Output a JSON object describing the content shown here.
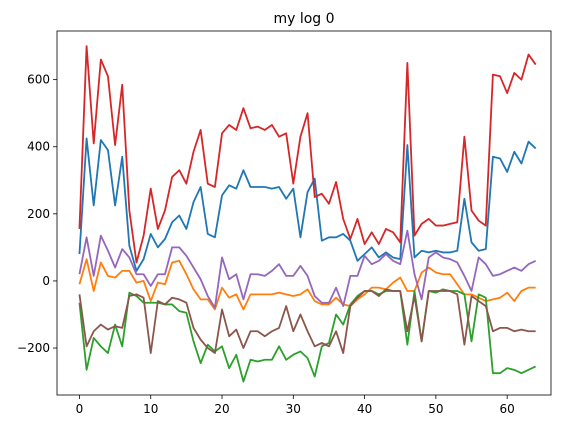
{
  "chart_data": {
    "type": "line",
    "title": "my log 0",
    "xlabel": "",
    "ylabel": "",
    "xlim": [
      -3.15,
      66.15
    ],
    "ylim": [
      -340,
      745
    ],
    "xticks": [
      0,
      10,
      20,
      30,
      40,
      50,
      60
    ],
    "yticks": [
      -200,
      0,
      200,
      400,
      600
    ],
    "grid": false,
    "legend": "none",
    "series": [
      {
        "color": "#1f77b4",
        "values": [
          80,
          425,
          225,
          420,
          390,
          225,
          370,
          105,
          30,
          65,
          140,
          100,
          125,
          175,
          195,
          155,
          235,
          280,
          140,
          130,
          255,
          285,
          275,
          330,
          280,
          280,
          280,
          275,
          280,
          245,
          275,
          130,
          265,
          305,
          120,
          130,
          130,
          140,
          120,
          60,
          80,
          100,
          70,
          85,
          70,
          65,
          405,
          70,
          90,
          85,
          90,
          85,
          85,
          90,
          245,
          115,
          90,
          95,
          370,
          365,
          325,
          385,
          350,
          415,
          395
        ]
      },
      {
        "color": "#ff7f0e",
        "values": [
          -10,
          65,
          -30,
          55,
          15,
          10,
          30,
          30,
          -5,
          0,
          -60,
          -5,
          -10,
          55,
          60,
          20,
          -25,
          -55,
          -55,
          -85,
          -20,
          -50,
          -40,
          -85,
          -40,
          -40,
          -40,
          -40,
          -35,
          -40,
          -45,
          -40,
          -25,
          -60,
          -70,
          -70,
          -50,
          -70,
          -75,
          -55,
          -40,
          -20,
          -20,
          -25,
          -5,
          10,
          -30,
          -30,
          25,
          40,
          25,
          20,
          20,
          -10,
          -40,
          -40,
          -50,
          -60,
          -55,
          -50,
          -35,
          -60,
          -30,
          -20,
          -20
        ]
      },
      {
        "color": "#2ca02c",
        "values": [
          -65,
          -265,
          -170,
          -195,
          -215,
          -130,
          -195,
          -35,
          -45,
          -65,
          -65,
          -65,
          -70,
          -70,
          -90,
          -95,
          -180,
          -245,
          -190,
          -210,
          -195,
          -260,
          -220,
          -300,
          -235,
          -240,
          -235,
          -235,
          -195,
          -235,
          -220,
          -210,
          -230,
          -285,
          -195,
          -185,
          -100,
          -130,
          -70,
          -45,
          -30,
          -30,
          -40,
          -30,
          -30,
          -30,
          -190,
          -30,
          -180,
          -30,
          -35,
          -25,
          -30,
          -30,
          -40,
          -180,
          -40,
          -50,
          -275,
          -275,
          -260,
          -265,
          -275,
          -265,
          -255
        ]
      },
      {
        "color": "#d62728",
        "values": [
          155,
          700,
          410,
          660,
          610,
          405,
          585,
          210,
          55,
          135,
          275,
          155,
          210,
          310,
          330,
          290,
          385,
          450,
          290,
          280,
          440,
          465,
          450,
          515,
          455,
          460,
          450,
          465,
          430,
          440,
          290,
          430,
          500,
          250,
          260,
          230,
          295,
          185,
          125,
          185,
          110,
          145,
          110,
          155,
          145,
          115,
          650,
          135,
          170,
          185,
          165,
          165,
          170,
          175,
          430,
          210,
          180,
          165,
          615,
          610,
          560,
          620,
          600,
          675,
          645
        ]
      },
      {
        "color": "#9467bd",
        "values": [
          20,
          130,
          15,
          135,
          90,
          40,
          95,
          70,
          20,
          20,
          -15,
          20,
          20,
          100,
          100,
          75,
          40,
          5,
          -45,
          -80,
          70,
          5,
          20,
          -55,
          20,
          20,
          15,
          30,
          50,
          15,
          15,
          45,
          15,
          -45,
          -65,
          -65,
          -20,
          -75,
          15,
          15,
          75,
          50,
          60,
          80,
          60,
          50,
          150,
          20,
          -55,
          70,
          85,
          70,
          65,
          55,
          15,
          -30,
          70,
          50,
          15,
          20,
          30,
          40,
          30,
          50,
          60
        ]
      },
      {
        "color": "#8c564b",
        "values": [
          -40,
          -195,
          -150,
          -130,
          -145,
          -135,
          -140,
          -45,
          -40,
          -50,
          -215,
          -60,
          -70,
          -50,
          -55,
          -65,
          -140,
          -175,
          -200,
          -215,
          -85,
          -165,
          -145,
          -200,
          -150,
          -150,
          -165,
          -150,
          -140,
          -75,
          -150,
          -100,
          -150,
          -195,
          -185,
          -195,
          -150,
          -215,
          -75,
          -50,
          -30,
          -30,
          -45,
          -25,
          -30,
          -30,
          -150,
          -45,
          -180,
          -30,
          -30,
          -30,
          -30,
          -40,
          -190,
          -45,
          -60,
          -75,
          -150,
          -140,
          -140,
          -150,
          -145,
          -150,
          -150
        ]
      }
    ]
  }
}
